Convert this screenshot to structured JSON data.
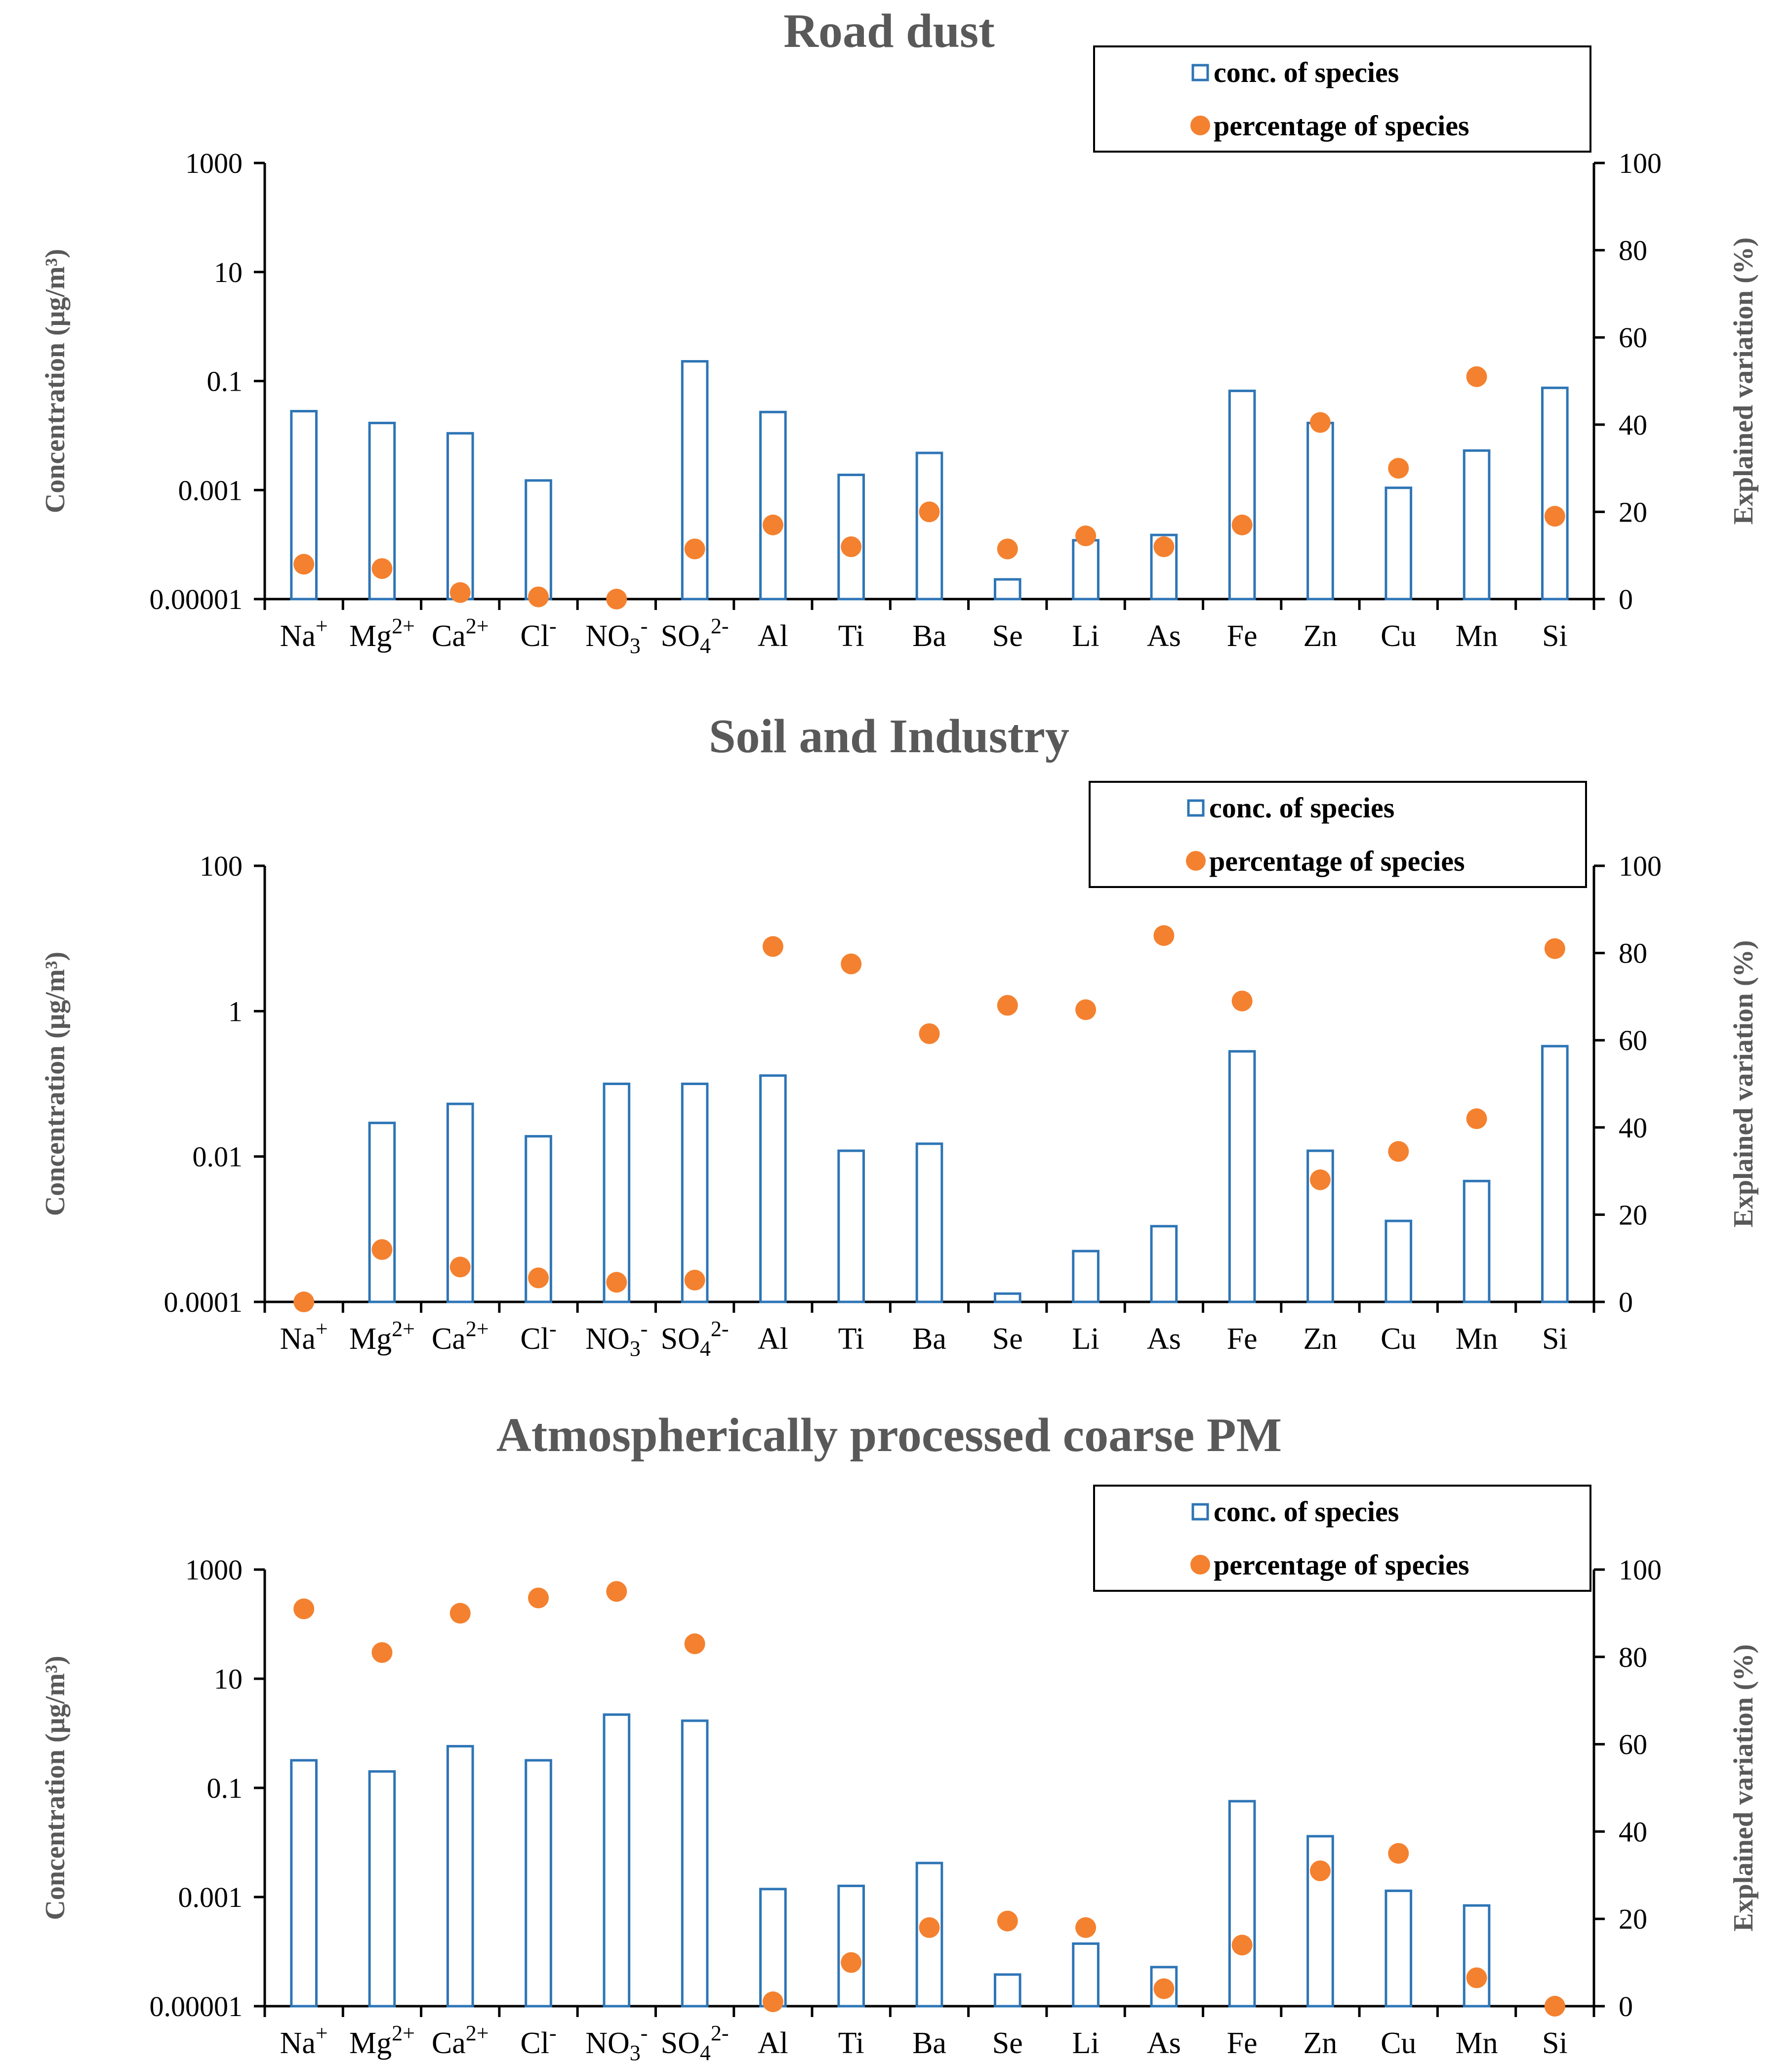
{
  "colors": {
    "bar": "#2E75B6",
    "dot": "#F4812F",
    "axis": "#000000",
    "title": "#595959"
  },
  "chart_data": [
    {
      "type": "bar",
      "title": "Road dust",
      "ylabel": "Concentration (μg/m³)",
      "y2label": "Explained variation (%)",
      "yscale": "log",
      "ylim": [
        1e-05,
        1000
      ],
      "yticks": [
        "1000",
        "10",
        "0.1",
        "0.001",
        "0.00001"
      ],
      "y2lim": [
        0,
        100
      ],
      "y2ticks": [
        "100",
        "80",
        "60",
        "40",
        "20",
        "0"
      ],
      "legend": [
        "conc. of species",
        "percentage of species"
      ],
      "categories": [
        {
          "base": "Na",
          "sub": "",
          "sup": "+"
        },
        {
          "base": "Mg",
          "sub": "",
          "sup": "2+"
        },
        {
          "base": "Ca",
          "sub": "",
          "sup": "2+"
        },
        {
          "base": "Cl",
          "sub": "",
          "sup": "-"
        },
        {
          "base": "NO",
          "sub": "3",
          "sup": "-"
        },
        {
          "base": "SO",
          "sub": "4",
          "sup": "2-"
        },
        {
          "base": "Al",
          "sub": "",
          "sup": ""
        },
        {
          "base": "Ti",
          "sub": "",
          "sup": ""
        },
        {
          "base": "Ba",
          "sub": "",
          "sup": ""
        },
        {
          "base": "Se",
          "sub": "",
          "sup": ""
        },
        {
          "base": "Li",
          "sub": "",
          "sup": ""
        },
        {
          "base": "As",
          "sub": "",
          "sup": ""
        },
        {
          "base": "Fe",
          "sub": "",
          "sup": ""
        },
        {
          "base": "Zn",
          "sub": "",
          "sup": ""
        },
        {
          "base": "Cu",
          "sub": "",
          "sup": ""
        },
        {
          "base": "Mn",
          "sub": "",
          "sup": ""
        },
        {
          "base": "Si",
          "sub": "",
          "sup": ""
        }
      ],
      "series": [
        {
          "name": "conc. of species",
          "axis": "left",
          "values": [
            0.028,
            0.017,
            0.011,
            0.0015,
            null,
            0.23,
            0.027,
            0.0019,
            0.0048,
            2.3e-05,
            0.00012,
            0.00015,
            0.066,
            0.017,
            0.0011,
            0.0053,
            0.075
          ]
        },
        {
          "name": "percentage of species",
          "axis": "right",
          "values": [
            8,
            7,
            1.5,
            0.5,
            0,
            11.5,
            17,
            12,
            20,
            11.5,
            14.5,
            12,
            17,
            40.5,
            30,
            51,
            19
          ]
        }
      ]
    },
    {
      "type": "bar",
      "title": "Soil and Industry",
      "ylabel": "Concentration (μg/m³)",
      "y2label": "Explained variation (%)",
      "yscale": "log",
      "ylim": [
        0.0001,
        100
      ],
      "yticks": [
        "100",
        "1",
        "0.01",
        "0.0001"
      ],
      "y2lim": [
        0,
        100
      ],
      "y2ticks": [
        "100",
        "80",
        "60",
        "40",
        "20",
        "0"
      ],
      "legend": [
        "conc. of species",
        "percentage of species"
      ],
      "categories": [
        {
          "base": "Na",
          "sub": "",
          "sup": "+"
        },
        {
          "base": "Mg",
          "sub": "",
          "sup": "2+"
        },
        {
          "base": "Ca",
          "sub": "",
          "sup": "2+"
        },
        {
          "base": "Cl",
          "sub": "",
          "sup": "-"
        },
        {
          "base": "NO",
          "sub": "3",
          "sup": "-"
        },
        {
          "base": "SO",
          "sub": "4",
          "sup": "2-"
        },
        {
          "base": "Al",
          "sub": "",
          "sup": ""
        },
        {
          "base": "Ti",
          "sub": "",
          "sup": ""
        },
        {
          "base": "Ba",
          "sub": "",
          "sup": ""
        },
        {
          "base": "Se",
          "sub": "",
          "sup": ""
        },
        {
          "base": "Li",
          "sub": "",
          "sup": ""
        },
        {
          "base": "As",
          "sub": "",
          "sup": ""
        },
        {
          "base": "Fe",
          "sub": "",
          "sup": ""
        },
        {
          "base": "Zn",
          "sub": "",
          "sup": ""
        },
        {
          "base": "Cu",
          "sub": "",
          "sup": ""
        },
        {
          "base": "Mn",
          "sub": "",
          "sup": ""
        },
        {
          "base": "Si",
          "sub": "",
          "sup": ""
        }
      ],
      "series": [
        {
          "name": "conc. of species",
          "axis": "left",
          "values": [
            null,
            0.029,
            0.053,
            0.019,
            0.1,
            0.1,
            0.13,
            0.012,
            0.015,
            0.00013,
            0.0005,
            0.0011,
            0.28,
            0.012,
            0.0013,
            0.0046,
            0.33
          ]
        },
        {
          "name": "percentage of species",
          "axis": "right",
          "values": [
            0,
            12,
            8,
            5.5,
            4.5,
            5,
            81.5,
            77.5,
            61.5,
            68,
            67,
            84,
            69,
            28,
            34.5,
            42,
            81
          ]
        }
      ]
    },
    {
      "type": "bar",
      "title": "Atmospherically processed coarse PM",
      "ylabel": "Concentration (μg/m³)",
      "y2label": "Explained variation (%)",
      "yscale": "log",
      "ylim": [
        1e-05,
        1000
      ],
      "yticks": [
        "1000",
        "10",
        "0.1",
        "0.001",
        "0.00001"
      ],
      "y2lim": [
        0,
        100
      ],
      "y2ticks": [
        "100",
        "80",
        "60",
        "40",
        "20",
        "0"
      ],
      "legend": [
        "conc. of species",
        "percentage of species"
      ],
      "categories": [
        {
          "base": "Na",
          "sub": "",
          "sup": "+"
        },
        {
          "base": "Mg",
          "sub": "",
          "sup": "2+"
        },
        {
          "base": "Ca",
          "sub": "",
          "sup": "2+"
        },
        {
          "base": "Cl",
          "sub": "",
          "sup": "-"
        },
        {
          "base": "NO",
          "sub": "3",
          "sup": "-"
        },
        {
          "base": "SO",
          "sub": "4",
          "sup": "2-"
        },
        {
          "base": "Al",
          "sub": "",
          "sup": ""
        },
        {
          "base": "Ti",
          "sub": "",
          "sup": ""
        },
        {
          "base": "Ba",
          "sub": "",
          "sup": ""
        },
        {
          "base": "Se",
          "sub": "",
          "sup": ""
        },
        {
          "base": "Li",
          "sub": "",
          "sup": ""
        },
        {
          "base": "As",
          "sub": "",
          "sup": ""
        },
        {
          "base": "Fe",
          "sub": "",
          "sup": ""
        },
        {
          "base": "Zn",
          "sub": "",
          "sup": ""
        },
        {
          "base": "Cu",
          "sub": "",
          "sup": ""
        },
        {
          "base": "Mn",
          "sub": "",
          "sup": ""
        },
        {
          "base": "Si",
          "sub": "",
          "sup": ""
        }
      ],
      "series": [
        {
          "name": "conc. of species",
          "axis": "left",
          "values": [
            0.32,
            0.2,
            0.58,
            0.32,
            2.2,
            1.7,
            0.0014,
            0.0016,
            0.0042,
            3.8e-05,
            0.00014,
            5.2e-05,
            0.057,
            0.013,
            0.0013,
            0.0007,
            null
          ]
        },
        {
          "name": "percentage of species",
          "axis": "right",
          "values": [
            91,
            81,
            90,
            93.5,
            95,
            83,
            1,
            10,
            18,
            19.5,
            18,
            4,
            14,
            31,
            35,
            6.5,
            0
          ]
        }
      ]
    }
  ]
}
